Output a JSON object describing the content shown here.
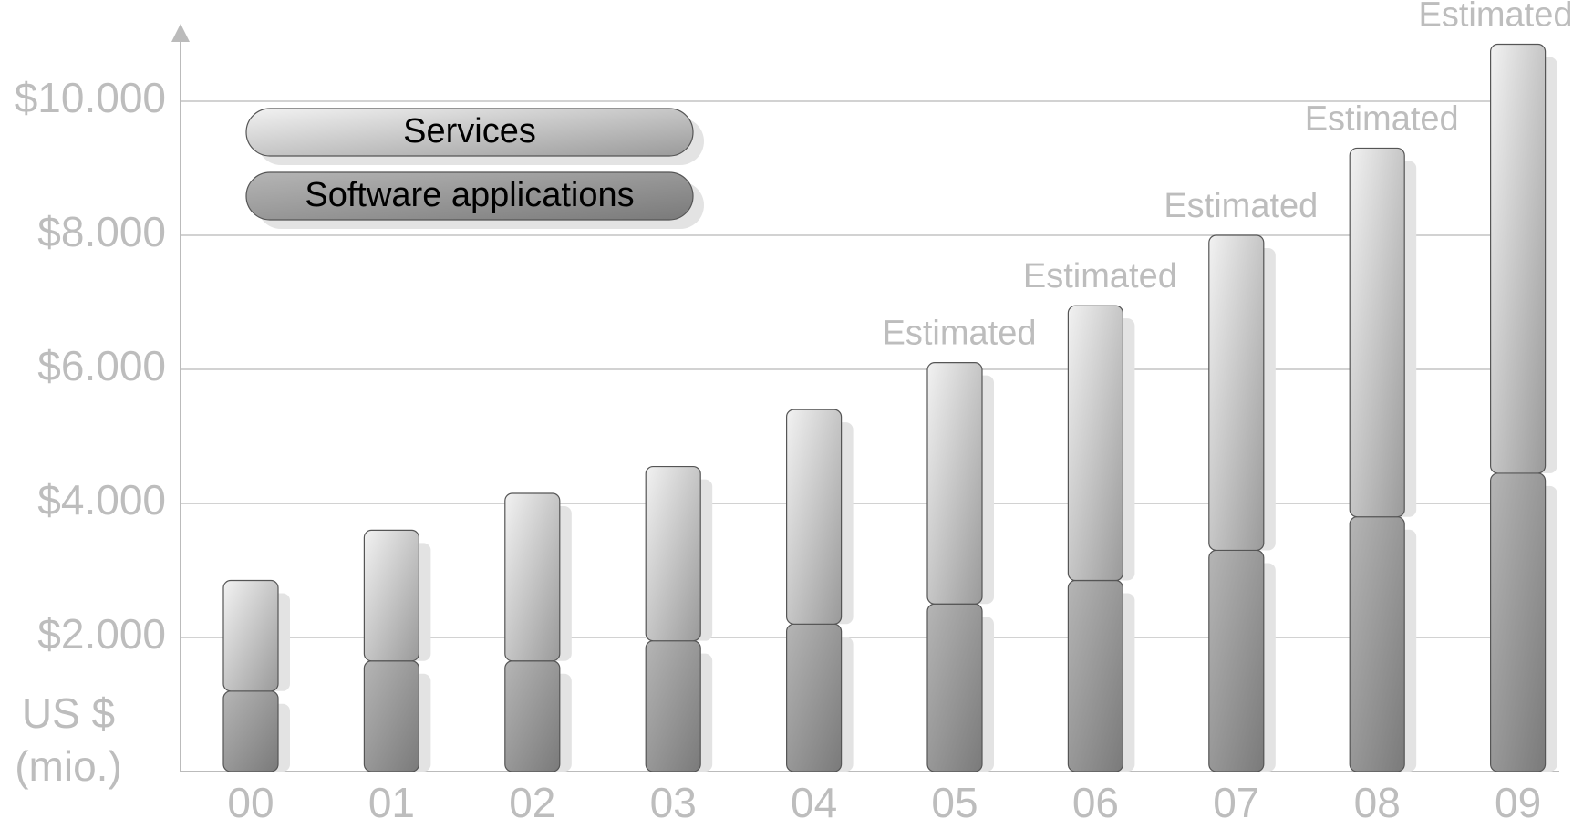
{
  "chart_data": {
    "type": "stacked_bar",
    "categories": [
      "00",
      "01",
      "02",
      "03",
      "04",
      "05",
      "06",
      "07",
      "08",
      "09"
    ],
    "series": [
      {
        "name": "Software applications",
        "color": "#8c8c8c",
        "values": [
          1200,
          1650,
          1650,
          1950,
          2200,
          2500,
          2850,
          3300,
          3800,
          4450
        ]
      },
      {
        "name": "Services",
        "color": "#d4d4d4",
        "values": [
          1650,
          1950,
          2500,
          2600,
          3200,
          3600,
          4100,
          4700,
          5500,
          6400
        ]
      }
    ],
    "ylabel": [
      "US $",
      "(mio.)"
    ],
    "ylim": [
      0,
      11000
    ],
    "yticks": [
      {
        "value": 2000,
        "label": "$2.000"
      },
      {
        "value": 4000,
        "label": "$4.000"
      },
      {
        "value": 6000,
        "label": "$6.000"
      },
      {
        "value": 8000,
        "label": "$8.000"
      },
      {
        "value": 10000,
        "label": "$10.000"
      }
    ],
    "grid": true,
    "annotations": [
      {
        "x": "05",
        "text": "Estimated"
      },
      {
        "x": "06",
        "text": "Estimated"
      },
      {
        "x": "07",
        "text": "Estimated"
      },
      {
        "x": "08",
        "text": "Estimated"
      },
      {
        "x": "09",
        "text": "Estimated"
      }
    ]
  }
}
